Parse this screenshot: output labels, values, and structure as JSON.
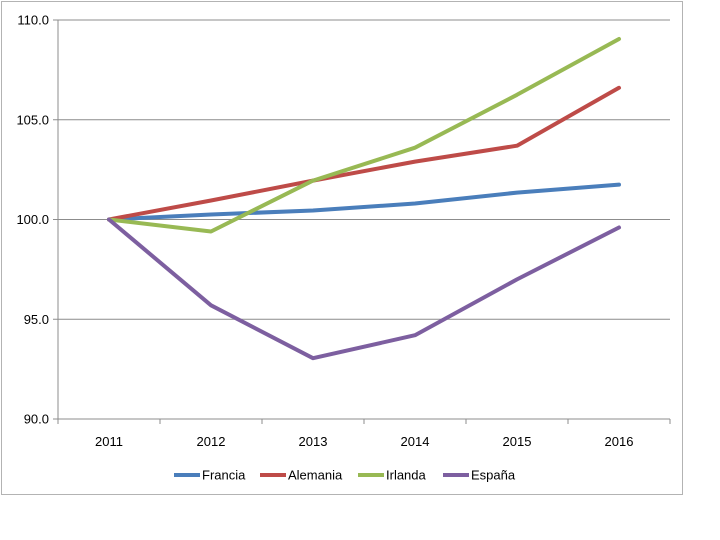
{
  "chart_data": {
    "type": "line",
    "categories": [
      "2011",
      "2012",
      "2013",
      "2014",
      "2015",
      "2016"
    ],
    "ylim": [
      90.0,
      110.0
    ],
    "yticks": [
      90.0,
      95.0,
      100.0,
      105.0,
      110.0
    ],
    "grid": "horizontal",
    "legend_position": "bottom",
    "title": "",
    "xlabel": "",
    "ylabel": "",
    "series": [
      {
        "name": "Francia",
        "color": "#4a7ebb",
        "values": [
          100.0,
          100.25,
          100.45,
          100.8,
          101.35,
          101.75
        ]
      },
      {
        "name": "Alemania",
        "color": "#be4b48",
        "values": [
          100.0,
          100.95,
          101.95,
          102.9,
          103.7,
          106.6
        ]
      },
      {
        "name": "Irlanda",
        "color": "#98b954",
        "values": [
          100.0,
          99.4,
          101.95,
          103.6,
          106.25,
          109.05
        ]
      },
      {
        "name": "España",
        "color": "#7d5fa0",
        "values": [
          100.0,
          95.7,
          93.05,
          94.2,
          97.0,
          99.6
        ]
      }
    ]
  }
}
